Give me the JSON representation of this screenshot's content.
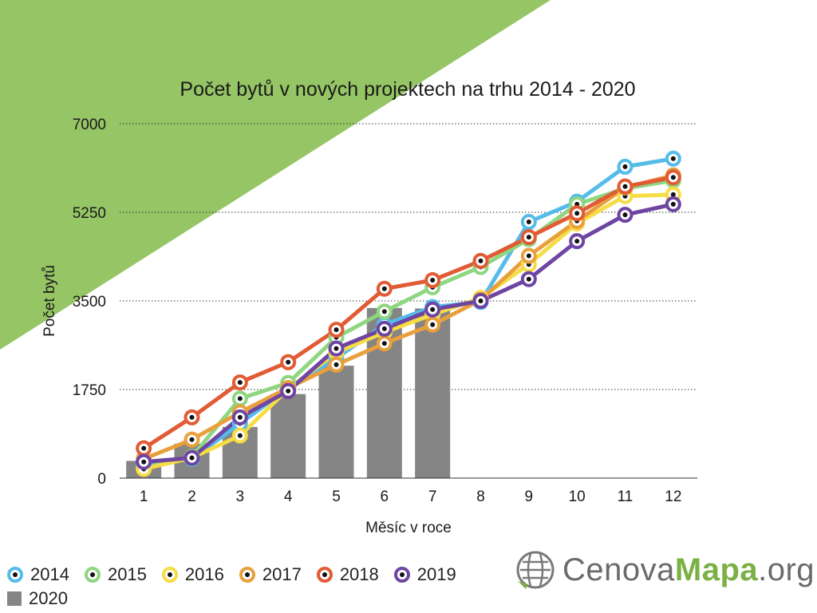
{
  "chart_data": {
    "type": "line",
    "title": "Počet bytů v nových projektech na trhu 2014 - 2020",
    "xlabel": "Měsíc v roce",
    "ylabel": "Počet bytů",
    "ylim": [
      0,
      7000
    ],
    "yticks": [
      0,
      1750,
      3500,
      5250,
      7000
    ],
    "ytick_labels": [
      "0",
      "1750",
      "3500",
      "5250",
      "7000"
    ],
    "categories": [
      "1",
      "2",
      "3",
      "4",
      "5",
      "6",
      "7",
      "8",
      "9",
      "10",
      "11",
      "12"
    ],
    "grid": "horizontal dotted",
    "legend_position": "bottom-left",
    "series": [
      {
        "name": "2014",
        "type": "line",
        "color": "#55bce9",
        "values": [
          270,
          380,
          1080,
          1770,
          2370,
          3030,
          3380,
          3480,
          5060,
          5460,
          6150,
          6310
        ]
      },
      {
        "name": "2015",
        "type": "line",
        "color": "#8ed680",
        "values": [
          200,
          420,
          1570,
          1880,
          2780,
          3290,
          3770,
          4170,
          4720,
          5410,
          5720,
          5880
        ]
      },
      {
        "name": "2016",
        "type": "line",
        "color": "#f6dc45",
        "values": [
          180,
          400,
          840,
          1760,
          2480,
          2880,
          3230,
          3560,
          4220,
          5030,
          5570,
          5600
        ]
      },
      {
        "name": "2017",
        "type": "line",
        "color": "#e9a03c",
        "values": [
          380,
          760,
          1300,
          1780,
          2240,
          2660,
          3030,
          3520,
          4390,
          5080,
          5740,
          5980
        ]
      },
      {
        "name": "2018",
        "type": "line",
        "color": "#e15b35",
        "values": [
          590,
          1200,
          1890,
          2290,
          2930,
          3740,
          3910,
          4290,
          4760,
          5230,
          5760,
          5940
        ]
      },
      {
        "name": "2019",
        "type": "line",
        "color": "#6e45a3",
        "values": [
          320,
          400,
          1200,
          1720,
          2560,
          2950,
          3330,
          3500,
          3930,
          4680,
          5200,
          5410
        ]
      },
      {
        "name": "2020",
        "type": "bar",
        "color": "#858585",
        "values": [
          340,
          680,
          1010,
          1660,
          2220,
          3360,
          3350,
          null,
          null,
          null,
          null,
          null
        ]
      }
    ]
  },
  "logo": {
    "part1": "Cenova",
    "part2": "Mapa",
    "part3": ".org"
  },
  "colors": {
    "accent_green": "#95c564",
    "logo_green": "#7bb045",
    "logo_gray": "#6b6b6b"
  }
}
